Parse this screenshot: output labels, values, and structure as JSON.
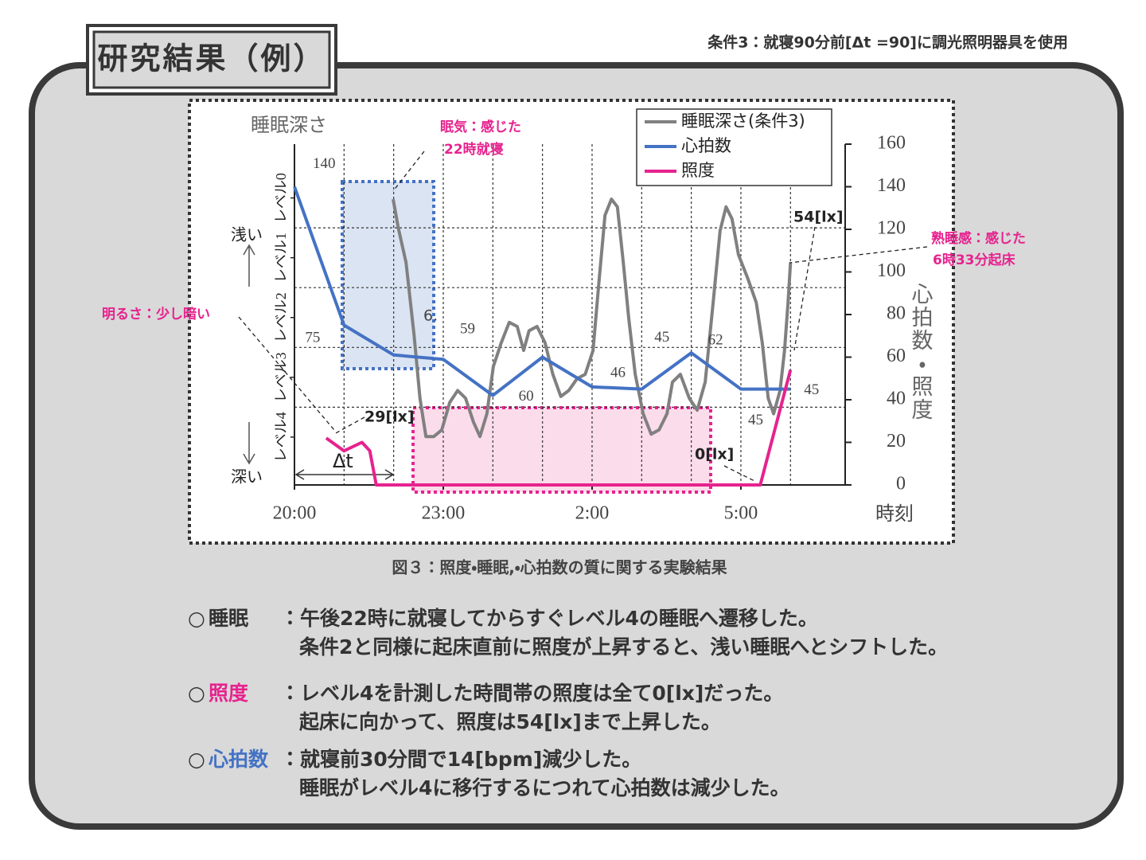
{
  "header": {
    "title": "研究結果（例）",
    "condition": "条件3：就寝90分前[Δt =90]に調光照明器具を使用"
  },
  "chart_data": {
    "type": "line",
    "y_label": "睡眠深さ",
    "y2_label": "心拍数・照度",
    "x_label": "時刻",
    "y_top_label": "浅い",
    "y_bottom_label": "深い",
    "xlim": [
      0,
      11
    ],
    "xticks": [
      {
        "value": 0,
        "label": "20:00"
      },
      {
        "value": 3,
        "label": "23:00"
      },
      {
        "value": 6,
        "label": "2:00"
      },
      {
        "value": 9,
        "label": "5:00"
      }
    ],
    "xgrid": [
      1,
      2,
      3,
      4,
      5,
      6,
      7,
      8,
      9,
      10
    ],
    "ylim": [
      4.8,
      -0.9
    ],
    "yticks": [
      {
        "value": 0,
        "label": "レベル0"
      },
      {
        "value": 1,
        "label": "レベル1"
      },
      {
        "value": 2,
        "label": "レベル2"
      },
      {
        "value": 3,
        "label": "レベル3"
      },
      {
        "value": 4,
        "label": "レベル4"
      }
    ],
    "ygrid": [
      0.5,
      1.5,
      2.5,
      3.5
    ],
    "y2lim": [
      0,
      160
    ],
    "y2ticks": [
      0,
      20,
      40,
      60,
      80,
      100,
      120,
      140,
      160
    ],
    "grid": true,
    "legend": "top-right",
    "series": [
      {
        "name": "睡眠深さ(条件3)",
        "color": "#808080",
        "axis": "y",
        "x": [
          1.99,
          2.09,
          2.25,
          2.41,
          2.53,
          2.65,
          2.81,
          2.97,
          3.13,
          3.29,
          3.45,
          3.61,
          3.74,
          3.88,
          4.01,
          4.17,
          4.33,
          4.49,
          4.62,
          4.73,
          4.89,
          5.05,
          5.21,
          5.37,
          5.53,
          5.7,
          5.86,
          6.02,
          6.13,
          6.26,
          6.39,
          6.51,
          6.63,
          6.74,
          6.87,
          7.03,
          7.19,
          7.35,
          7.51,
          7.62,
          7.78,
          7.96,
          8.12,
          8.28,
          8.44,
          8.58,
          8.7,
          8.82,
          8.95,
          9.14,
          9.31,
          9.43,
          9.55,
          9.66,
          9.79,
          9.88,
          9.95,
          10
        ],
        "values": [
          0.02,
          0.49,
          1.08,
          2.28,
          3.35,
          3.99,
          3.99,
          3.88,
          3.42,
          3.22,
          3.35,
          3.75,
          3.99,
          3.61,
          2.82,
          2.42,
          2.08,
          2.15,
          2.55,
          2.22,
          2.15,
          2.42,
          2.95,
          3.32,
          3.22,
          3.02,
          2.95,
          2.55,
          1.48,
          0.29,
          0.02,
          0.15,
          1.08,
          2.02,
          2.95,
          3.61,
          3.95,
          3.88,
          3.61,
          3.08,
          2.95,
          3.35,
          3.55,
          3.08,
          1.75,
          0.55,
          0.15,
          0.35,
          0.95,
          1.35,
          1.75,
          2.42,
          3.35,
          3.61,
          3.22,
          2.55,
          1.75,
          1.08
        ]
      },
      {
        "name": "心拍数",
        "color": "#4472c4",
        "axis": "y2",
        "x": [
          0,
          1,
          2,
          3,
          4,
          5,
          6,
          7,
          8,
          9,
          10
        ],
        "values": [
          140,
          75,
          61,
          59,
          42,
          60,
          46,
          45,
          62,
          45,
          45
        ]
      },
      {
        "name": "照度",
        "color": "#e6238e",
        "axis": "y2",
        "x": [
          0.64,
          1,
          1.36,
          1.52,
          1.65,
          9.39,
          10
        ],
        "values": [
          22,
          16,
          20,
          16,
          0,
          0,
          54
        ]
      }
    ],
    "annotations": [
      {
        "text": "眠気：感じた"
      },
      {
        "text": "22時就寝"
      },
      {
        "text": "明るさ：少し暗い"
      },
      {
        "text": "熟睡感：感じた"
      },
      {
        "text": "6時33分起床"
      },
      {
        "text": "29[lx]"
      },
      {
        "text": "0[lx]"
      },
      {
        "text": "54[lx]"
      },
      {
        "text": "Δt"
      },
      {
        "text": "6."
      }
    ]
  },
  "caption": "図３：照度・睡眠,・心拍数の質に関する実験結果",
  "notes": [
    {
      "marker": "○",
      "label": "睡眠",
      "lines": [
        "：午後22時に就寝してからすぐレベル4の睡眠へ遷移した。",
        "条件2と同様に起床直前に照度が上昇すると、浅い睡眠へとシフトした。"
      ]
    },
    {
      "marker": "○",
      "label": "照度",
      "lines": [
        "：レベル4を計測した時間帯の照度は全て0[lx]だった。",
        "起床に向かって、照度は54[lx]まで上昇した。"
      ]
    },
    {
      "marker": "○",
      "label": "心拍数",
      "lines": [
        "：就寝前30分間で14[bpm]減少した。",
        "睡眠がレベル4に移行するにつれて心拍数は減少した。"
      ]
    }
  ]
}
